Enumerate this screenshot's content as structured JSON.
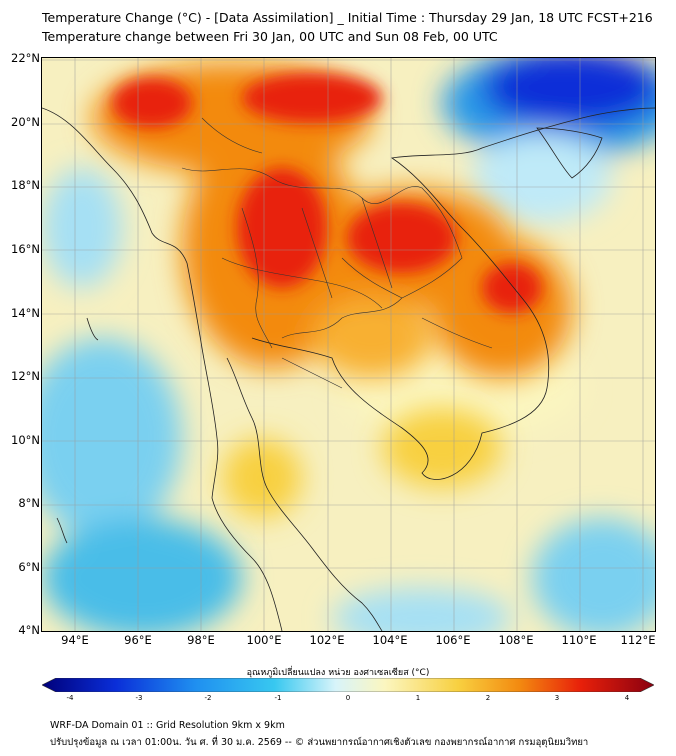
{
  "title": {
    "line1": "Temperature Change (°C) - [Data Assimilation] _ Initial Time : Thursday 29 Jan, 18 UTC FCST+216",
    "line2": "Temperature change between Fri 30 Jan, 00 UTC and Sun 08 Feb, 00 UTC"
  },
  "map": {
    "lat_labels": [
      "22°N",
      "20°N",
      "18°N",
      "16°N",
      "14°N",
      "12°N",
      "10°N",
      "8°N",
      "6°N",
      "4°N"
    ],
    "lon_labels": [
      "94°E",
      "96°E",
      "98°E",
      "100°E",
      "102°E",
      "104°E",
      "106°E",
      "108°E",
      "110°E",
      "112°E"
    ],
    "background_color": "#f7f0c0",
    "warm_color": "#e8200a",
    "cold_color": "#0a2ed8"
  },
  "colorbar": {
    "title": "อุณหภูมิเปลี่ยนแปลง หน่วย องศาเซลเซียส (°C)",
    "ticks": [
      "-4",
      "-3",
      "-2",
      "-1",
      "0",
      "1",
      "2",
      "3",
      "4"
    ],
    "colors": [
      "#00007a",
      "#0a2ed8",
      "#1f8ff0",
      "#38c8f0",
      "#d8f4fa",
      "#fbf6c0",
      "#f8d040",
      "#f38a10",
      "#e8200a",
      "#8a0010"
    ]
  },
  "footer": {
    "line1": "WRF-DA Domain 01 :: Grid Resolution 9km x 9km",
    "line2": "ปรับปรุงข้อมูล ณ เวลา 01:00น. วัน ศ. ที่ 30 ม.ค. 2569 -- © ส่วนพยากรณ์อากาศเชิงตัวเลข กองพยากรณ์อากาศ กรมอุตุนิยมวิทยา"
  }
}
